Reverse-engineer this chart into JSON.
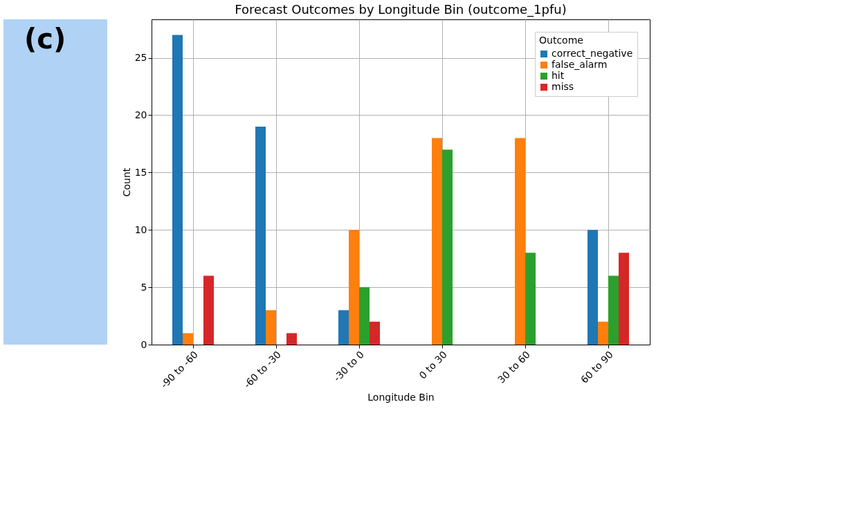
{
  "chart_data": {
    "type": "bar",
    "title": "Forecast Outcomes by Longitude Bin (outcome_1pfu)",
    "xlabel": "Longitude Bin",
    "ylabel": "Count",
    "legend_title": "Outcome",
    "categories": [
      "-90 to -60",
      "-60 to -30",
      "-30 to 0",
      "0 to 30",
      "30 to 60",
      "60 to 90"
    ],
    "series": [
      {
        "name": "correct_negative",
        "color": "#1f77b4",
        "values": [
          27,
          19,
          3,
          0,
          0,
          10
        ]
      },
      {
        "name": "false_alarm",
        "color": "#ff7f0e",
        "values": [
          1,
          3,
          10,
          18,
          18,
          2
        ]
      },
      {
        "name": "hit",
        "color": "#2ca02c",
        "values": [
          0,
          0,
          5,
          17,
          8,
          6
        ]
      },
      {
        "name": "miss",
        "color": "#d62728",
        "values": [
          6,
          1,
          2,
          0,
          0,
          8
        ]
      }
    ],
    "ylim": [
      0,
      28.35
    ],
    "yticks": [
      0,
      5,
      10,
      15,
      20,
      25
    ],
    "grid": true,
    "legend": "top right",
    "annotations": [
      "(c)"
    ]
  }
}
